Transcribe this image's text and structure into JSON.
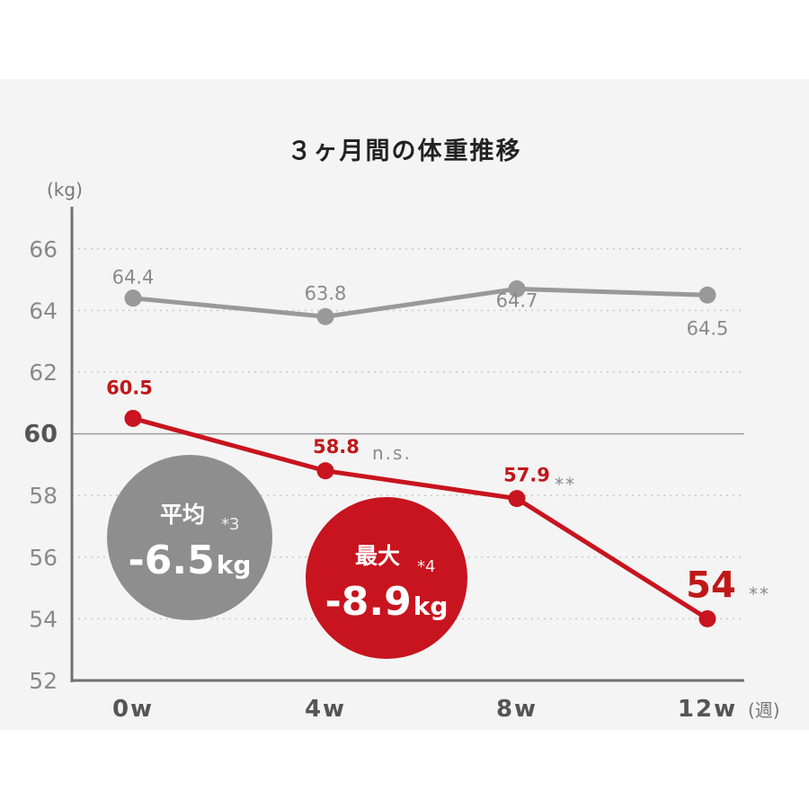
{
  "chart_data": {
    "type": "line",
    "title": "３ヶ月間の体重推移",
    "ylabel": "(kg)",
    "xlabel": "(週)",
    "ylim": [
      52,
      67
    ],
    "yticks": [
      52,
      54,
      56,
      58,
      60,
      62,
      64,
      66
    ],
    "categories": [
      "0w",
      "4w",
      "8w",
      "12w"
    ],
    "series": [
      {
        "values": [
          64.4,
          63.8,
          64.7,
          64.5
        ],
        "labels": [
          "64.4",
          "63.8",
          "64.7",
          "64.5"
        ],
        "color": "#999999"
      },
      {
        "values": [
          60.5,
          58.8,
          57.9,
          54
        ],
        "labels": [
          "60.5",
          "58.8",
          "57.9",
          "54"
        ],
        "color": "#c8141e"
      }
    ],
    "significance": [
      "",
      "n.s.",
      "**",
      "**"
    ],
    "grid": true,
    "reference_line": 60
  },
  "badges": {
    "average": {
      "label": "平均",
      "note": "*3",
      "value": "-6.5",
      "unit": "kg",
      "color": "#8e8e8e"
    },
    "max": {
      "label": "最大",
      "note": "*4",
      "value": "-8.9",
      "unit": "kg",
      "color": "#c8141e"
    }
  }
}
